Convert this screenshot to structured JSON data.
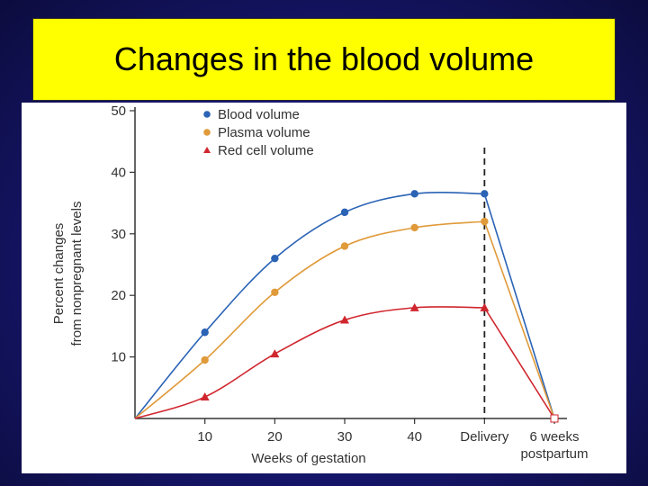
{
  "slide": {
    "title": "Changes in the blood volume"
  },
  "colors": {
    "title_bg": "#ffff00",
    "blood": "#2b63b5",
    "plasma": "#e09a3a",
    "red_cell": "#d0262e",
    "axis": "#333333"
  },
  "chart_data": {
    "type": "line",
    "title": "Changes in the blood volume",
    "xlabel": "Weeks of gestation",
    "ylabel_lines": [
      "Percent changes",
      "from nonpregnant levels"
    ],
    "categories": [
      "0",
      "10",
      "20",
      "30",
      "40",
      "Delivery",
      "6 weeks postpartum"
    ],
    "x_ticks": [
      {
        "x": 10,
        "label": "10"
      },
      {
        "x": 20,
        "label": "20"
      },
      {
        "x": 30,
        "label": "30"
      },
      {
        "x": 40,
        "label": "40"
      },
      {
        "x": 50,
        "label": "Delivery"
      },
      {
        "x": 60,
        "label": "6 weeks",
        "label2": "postpartum"
      }
    ],
    "y_ticks": [
      10,
      20,
      30,
      40,
      50
    ],
    "ylim": [
      0,
      50
    ],
    "xlim": [
      0,
      60
    ],
    "delivery_marker_x": 50,
    "series": [
      {
        "name": "Blood volume",
        "color_key": "blood",
        "marker": "circle",
        "x": [
          0,
          10,
          20,
          30,
          40,
          50,
          60
        ],
        "values": [
          0,
          14,
          26,
          33.5,
          36.5,
          36.5,
          0
        ]
      },
      {
        "name": "Plasma volume",
        "color_key": "plasma",
        "marker": "circle",
        "x": [
          0,
          10,
          20,
          30,
          40,
          50,
          60
        ],
        "values": [
          0,
          9.5,
          20.5,
          28,
          31,
          32,
          0
        ]
      },
      {
        "name": "Red cell volume",
        "color_key": "red_cell",
        "marker": "triangle",
        "x": [
          0,
          10,
          20,
          30,
          40,
          50,
          60
        ],
        "values": [
          0,
          3.5,
          10.5,
          16,
          18,
          18,
          0
        ]
      }
    ]
  }
}
